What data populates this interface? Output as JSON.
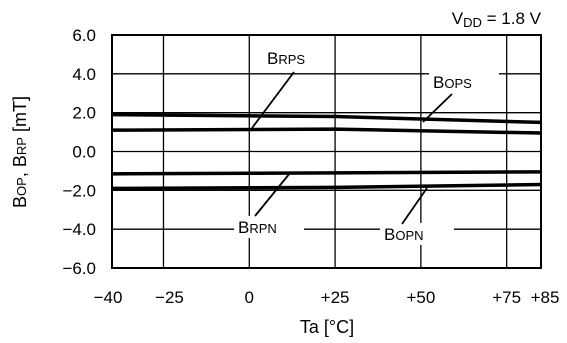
{
  "chart_data": {
    "type": "line",
    "annotation": {
      "main": "V",
      "sub": "DD",
      "rest": " = 1.8 V"
    },
    "xlabel": "Ta [°C]",
    "ylabel": {
      "part1_main": "B",
      "part1_sub": "OP",
      "sep": ", ",
      "part2_main": "B",
      "part2_sub": "RP",
      "unit": " [mT]"
    },
    "xlim": [
      -40,
      85
    ],
    "ylim": [
      -6.0,
      6.0
    ],
    "xticks": [
      -40,
      -25,
      0,
      25,
      50,
      75,
      85
    ],
    "xtick_labels": [
      "−40",
      "−25",
      "0",
      "+25",
      "+50",
      "+75",
      "+85"
    ],
    "yticks": [
      6.0,
      4.0,
      2.0,
      0.0,
      -2.0,
      -4.0,
      -6.0
    ],
    "ytick_labels": [
      "6.0",
      "4.0",
      "2.0",
      "0.0",
      "−2.0",
      "−4.0",
      "−6.0"
    ],
    "grid": true,
    "series": [
      {
        "name": "BOPS",
        "label_main": "B",
        "label_sub": "OPS",
        "x": [
          -40,
          25,
          85
        ],
        "y": [
          1.9,
          1.8,
          1.5
        ]
      },
      {
        "name": "BRPS",
        "label_main": "B",
        "label_sub": "RPS",
        "x": [
          -40,
          25,
          85
        ],
        "y": [
          1.1,
          1.15,
          0.95
        ]
      },
      {
        "name": "BRPN",
        "label_main": "B",
        "label_sub": "RPN",
        "x": [
          -40,
          25,
          85
        ],
        "y": [
          -1.15,
          -1.1,
          -1.05
        ]
      },
      {
        "name": "BOPN",
        "label_main": "B",
        "label_sub": "OPN",
        "x": [
          -40,
          25,
          85
        ],
        "y": [
          -1.9,
          -1.85,
          -1.7
        ]
      }
    ]
  }
}
